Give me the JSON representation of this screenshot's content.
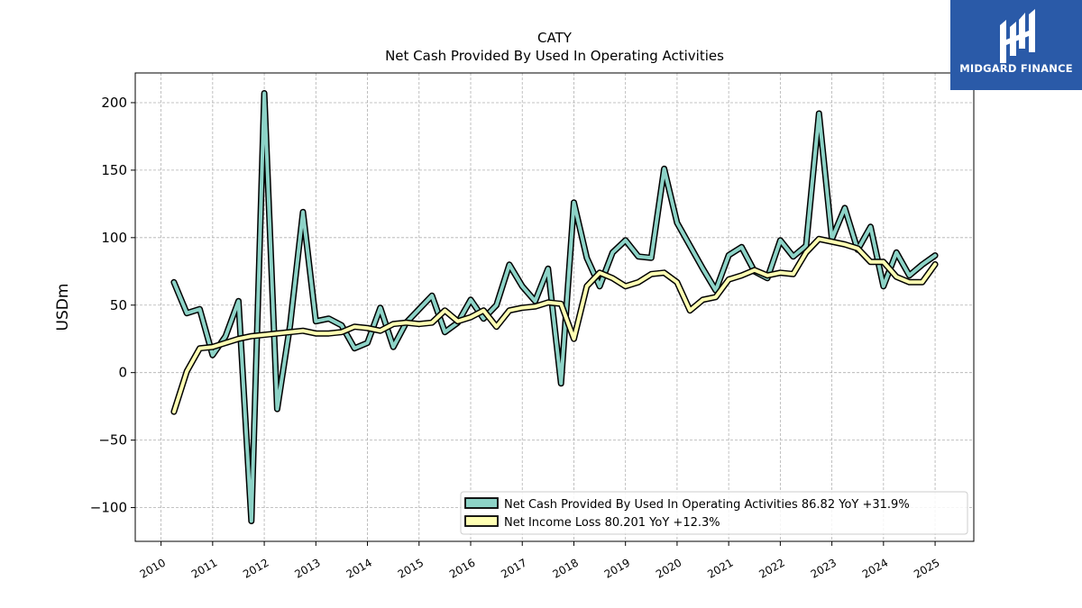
{
  "brand": {
    "name": "MIDGARD FINANCE",
    "bg_color": "#2a5aa8"
  },
  "chart_data": {
    "type": "line",
    "title": "CATY",
    "subtitle": "Net Cash Provided By Used In Operating Activities",
    "ylabel": "USDm",
    "xlabel": "",
    "ylim": [
      -125,
      222
    ],
    "xlim": [
      2009.5,
      2025.75
    ],
    "yticks": [
      -100,
      -50,
      0,
      50,
      100,
      150,
      200
    ],
    "xticks": [
      2010,
      2011,
      2012,
      2013,
      2014,
      2015,
      2016,
      2017,
      2018,
      2019,
      2020,
      2021,
      2022,
      2023,
      2024,
      2025
    ],
    "grid": true,
    "legend_position": "lower-right",
    "x": [
      2010.25,
      2010.5,
      2010.75,
      2011.0,
      2011.25,
      2011.5,
      2011.75,
      2012.0,
      2012.25,
      2012.5,
      2012.75,
      2013.0,
      2013.25,
      2013.5,
      2013.75,
      2014.0,
      2014.25,
      2014.5,
      2014.75,
      2015.0,
      2015.25,
      2015.5,
      2015.75,
      2016.0,
      2016.25,
      2016.5,
      2016.75,
      2017.0,
      2017.25,
      2017.5,
      2017.75,
      2018.0,
      2018.25,
      2018.5,
      2018.75,
      2019.0,
      2019.25,
      2019.5,
      2019.75,
      2020.0,
      2020.25,
      2020.5,
      2020.75,
      2021.0,
      2021.25,
      2021.5,
      2021.75,
      2022.0,
      2022.25,
      2022.5,
      2022.75,
      2023.0,
      2023.25,
      2023.5,
      2023.75,
      2024.0,
      2024.25,
      2024.5,
      2024.75,
      2025.0
    ],
    "series": [
      {
        "name": "Net Cash Provided By Used In Operating Activities",
        "legend_label": "Net Cash Provided By Used In Operating Activities  86.82 YoY +31.9%",
        "color": "#8dd3c7",
        "values": [
          67,
          44,
          47,
          13,
          27,
          53,
          -110,
          207,
          -27,
          35,
          119,
          38,
          40,
          35,
          18,
          22,
          48,
          19,
          37,
          47,
          57,
          30,
          37,
          54,
          40,
          50,
          80,
          64,
          53,
          77,
          -8,
          126,
          85,
          64,
          89,
          98,
          86,
          85,
          151,
          111,
          94,
          77,
          61,
          87,
          93,
          75,
          70,
          98,
          86,
          94,
          192,
          99,
          122,
          91,
          108,
          64,
          89,
          72,
          80,
          86.82
        ]
      },
      {
        "name": "Net Income Loss",
        "legend_label": "Net Income Loss  80.201 YoY +12.3%",
        "color": "#ffffb3",
        "values": [
          -29,
          1,
          18,
          19,
          22,
          25,
          27,
          28,
          29,
          30,
          31,
          29,
          29,
          30,
          34,
          33,
          31,
          36,
          37,
          36,
          37,
          46,
          38,
          41,
          46,
          34,
          46,
          48,
          49,
          52,
          51,
          25,
          64,
          74,
          70,
          64,
          67,
          73,
          74,
          67,
          46,
          54,
          56,
          69,
          72,
          76,
          72,
          74,
          73,
          89,
          99,
          97,
          95,
          92,
          82,
          82,
          71,
          67,
          67,
          80.201
        ]
      }
    ]
  }
}
